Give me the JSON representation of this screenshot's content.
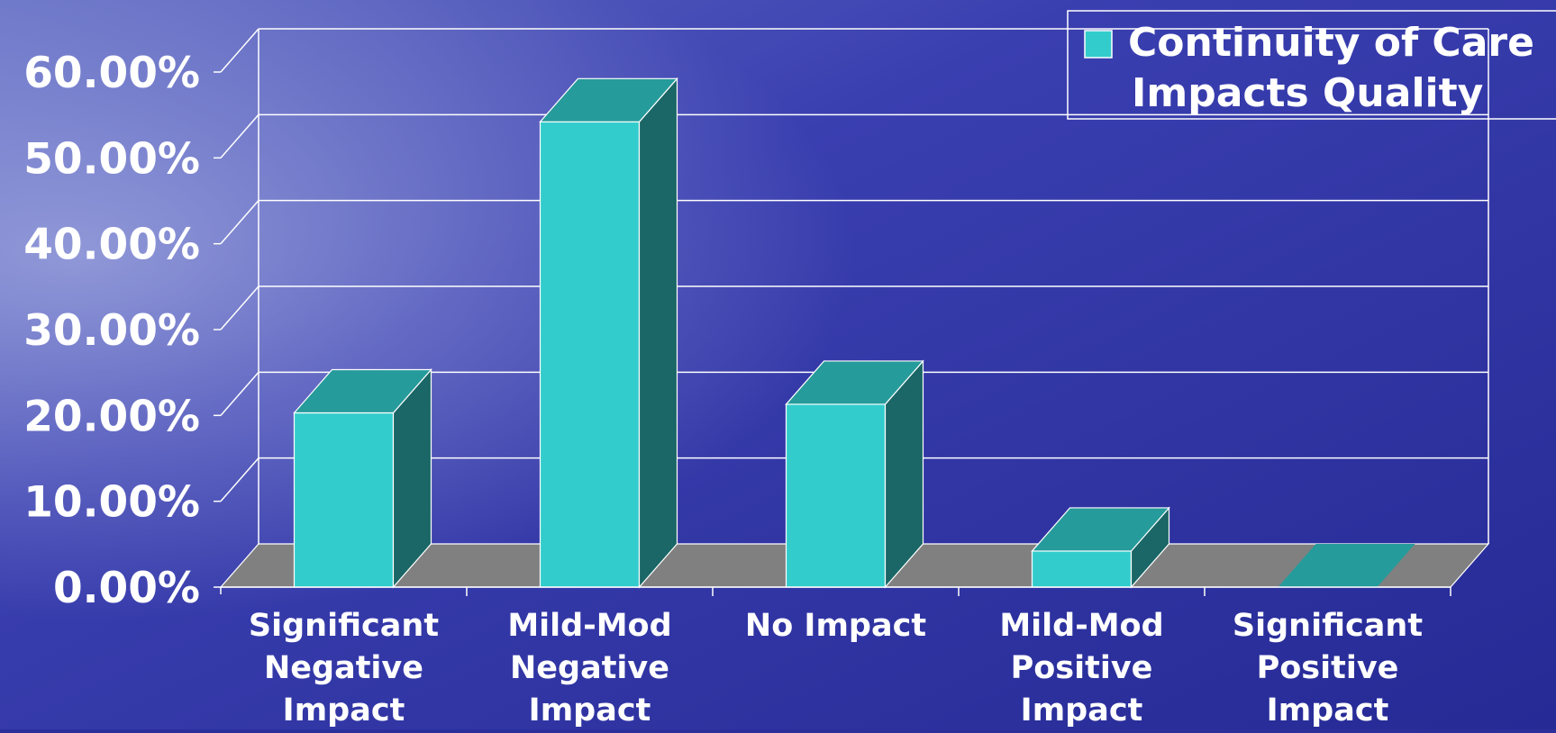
{
  "chart_data": {
    "type": "bar",
    "title": "",
    "xlabel": "",
    "ylabel": "",
    "categories": [
      [
        "Significant",
        "Negative",
        "Impact"
      ],
      [
        "Mild-Mod",
        "Negative",
        "Impact"
      ],
      [
        "No Impact"
      ],
      [
        "Mild-Mod",
        "Positive",
        "Impact"
      ],
      [
        "Significant",
        "Positive",
        "Impact"
      ]
    ],
    "series": [
      {
        "name": "Continuity of Care Impacts Quality",
        "values": [
          20.3,
          54.2,
          21.3,
          4.2,
          0.0
        ]
      }
    ],
    "y_ticks": [
      "0.00%",
      "10.00%",
      "20.00%",
      "30.00%",
      "40.00%",
      "50.00%",
      "60.00%"
    ],
    "ylim": [
      0,
      60
    ],
    "grid": true,
    "style": "3d-column",
    "legend": {
      "position": "top-right",
      "lines": [
        "Continuity of Care",
        "Impacts Quality"
      ]
    },
    "colors": {
      "bar_front": "#33cccc",
      "bar_top": "#269b9b",
      "bar_side": "#1b6666",
      "floor": "#808080",
      "grid": "#ffffff",
      "text": "#ffffff",
      "background": "#2b2f9a"
    }
  }
}
